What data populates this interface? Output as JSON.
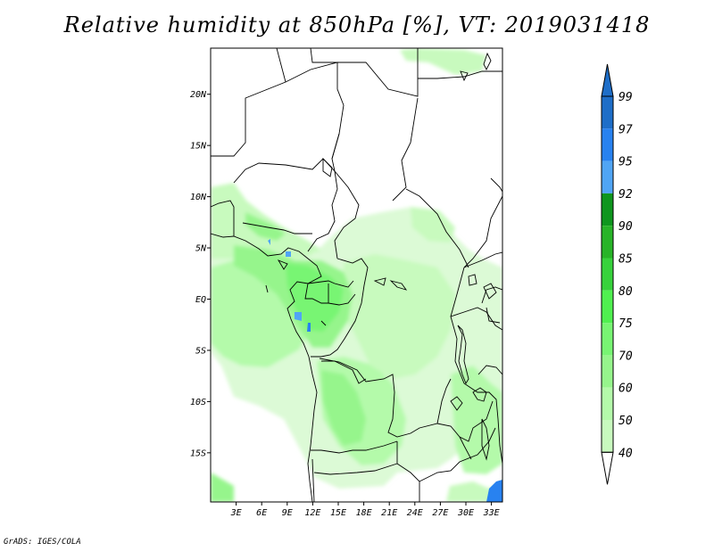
{
  "title": "Relative humidity at 850hPa [%], VT: 2019031418",
  "credit": "GrADS: IGES/COLA",
  "map": {
    "lat_labels": [
      "20N",
      "15N",
      "10N",
      "5N",
      "EQ",
      "5S",
      "10S",
      "15S"
    ],
    "lat_values": [
      20,
      15,
      10,
      5,
      0,
      -5,
      -10,
      -15
    ],
    "lon_labels": [
      "3E",
      "6E",
      "9E",
      "12E",
      "15E",
      "18E",
      "21E",
      "24E",
      "27E",
      "30E",
      "33E"
    ],
    "lon_values": [
      3,
      6,
      9,
      12,
      15,
      18,
      21,
      24,
      27,
      30,
      33
    ],
    "lon_range": [
      0,
      34.3
    ],
    "lat_range": [
      -19.8,
      24.5
    ]
  },
  "colorbar": {
    "levels": [
      "99",
      "97",
      "95",
      "92",
      "90",
      "85",
      "80",
      "75",
      "70",
      "60",
      "50",
      "40"
    ],
    "colors": [
      "#1e6ec8",
      "#2882f0",
      "#50a5f5",
      "#0f961e",
      "#28b428",
      "#37d23c",
      "#50f050",
      "#78f573",
      "#96f58c",
      "#b4faaa",
      "#c8fabe",
      "#e6ffe1"
    ],
    "top_triangle_color": "#1e6ec8",
    "bottom_triangle_color": "#ffffff"
  }
}
